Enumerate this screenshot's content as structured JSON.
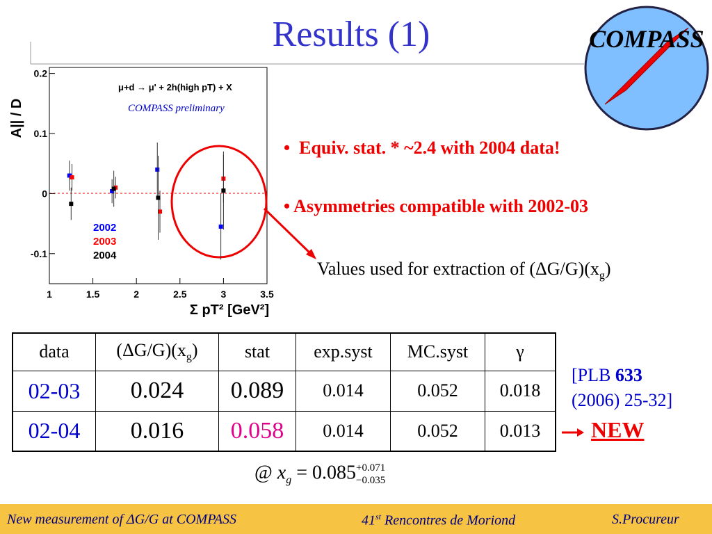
{
  "title": "Results (1)",
  "logo": "COMPASS",
  "chart_data": {
    "type": "scatter",
    "annotation": "μ+d → μ' + 2h(high pT) + X",
    "subtitle": "COMPASS preliminary",
    "y_label": "A|| / D",
    "x_label": "Σ pT² [GeV²]",
    "xlim": [
      1,
      3.5
    ],
    "xticks": [
      1,
      1.5,
      2,
      2.5,
      3,
      3.5
    ],
    "ylim": [
      -0.15,
      0.21
    ],
    "yticks": [
      -0.1,
      0,
      0.1,
      0.2
    ],
    "series": [
      {
        "name": "2002",
        "color": "#0000ff",
        "x": [
          1.23,
          1.72,
          2.24,
          2.97
        ],
        "values": [
          0.03,
          0.004,
          0.04,
          -0.055
        ],
        "errors": [
          0.025,
          0.02,
          0.045,
          0.055
        ]
      },
      {
        "name": "2003",
        "color": "#ff0000",
        "x": [
          1.26,
          1.76,
          2.27,
          3.0
        ],
        "values": [
          0.027,
          0.01,
          -0.03,
          0.025
        ],
        "errors": [
          0.022,
          0.018,
          0.035,
          0.04
        ]
      },
      {
        "name": "2004",
        "color": "#000000",
        "x": [
          1.25,
          1.74,
          2.25,
          3.0
        ],
        "values": [
          -0.017,
          0.008,
          -0.007,
          0.005
        ],
        "errors": [
          0.027,
          0.03,
          0.07,
          0.065
        ]
      }
    ]
  },
  "bullets": [
    "Equiv. stat. * ~2.4 with 2004 data!",
    "Asymmetries compatible with 2002-03"
  ],
  "note": {
    "text": "Values used for extraction of (ΔG/G)(x",
    "sub": "g",
    "tail": ")"
  },
  "table": {
    "header": [
      "data",
      {
        "text": "(ΔG/G)(x",
        "sub": "g",
        "tail": ")"
      },
      "stat",
      "exp.syst",
      "MC.syst",
      "γ"
    ],
    "rows": [
      [
        "02-03",
        "0.024",
        "0.089",
        "0.014",
        "0.052",
        "0.018"
      ],
      [
        "02-04",
        "0.016",
        "0.058",
        "0.014",
        "0.052",
        "0.013"
      ]
    ]
  },
  "reference": {
    "prefix": "[PLB ",
    "volume": "633",
    "rest": "(2006) 25-32]"
  },
  "new_label": "NEW",
  "formula": {
    "at": "@",
    "var": "x",
    "sub": "g",
    "eq": "= 0.085",
    "plus": "+0.071",
    "minus": "−0.035"
  },
  "footer": {
    "left": "New measurement of ΔG/G at COMPASS",
    "middle": "41",
    "middle_sup": "st",
    "middle_tail": " Rencontres de Moriond",
    "right": "S.Procureur"
  }
}
